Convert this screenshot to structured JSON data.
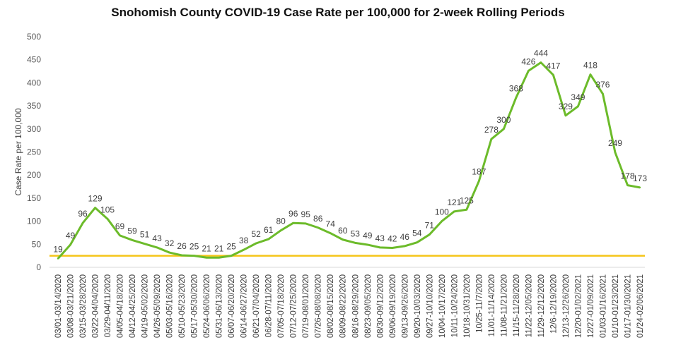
{
  "chart_data": {
    "type": "line",
    "title": "Snohomish County COVID-19 Case Rate per 100,000 for 2-week Rolling Periods",
    "xlabel": "",
    "ylabel": "Case Rate per 100,000",
    "ylim": [
      0,
      500
    ],
    "yticks": [
      0,
      50,
      100,
      150,
      200,
      250,
      300,
      350,
      400,
      450,
      500
    ],
    "grid": false,
    "legend": "none",
    "categories": [
      "03/01-03/14/2020",
      "03/08-03/21/2020",
      "03/15-03/28/2020",
      "03/22-04/04/2020",
      "03/29-04/11/2020",
      "04/05-04/18/2020",
      "04/12-04/25/2020",
      "04/19-05/02/2020",
      "04/26-05/09/2020",
      "05/03-05/16/2020",
      "05/10-05/23/2020",
      "05/17-05/30/2020",
      "05/24-06/06/2020",
      "05/31-06/13/2020",
      "06/07-06/20/2020",
      "06/14-06/27/2020",
      "06/21-07/04/2020",
      "06/28-07/11/2020",
      "07/05-07/18/2020",
      "07/12-07/25/2020",
      "07/19-08/01/2020",
      "07/26-08/08/2020",
      "08/02-08/15/2020",
      "08/09-08/22/2020",
      "08/16-08/29/2020",
      "08/23-09/05/2020",
      "08/30-09/12/2020",
      "09/06-09/19/2020",
      "09/13-09/26/2020",
      "09/20-10/03/2020",
      "09/27-10/10/2020",
      "10/04-10/17/2020",
      "10/11-10/24/2020",
      "10/18-10/31/2020",
      "10/25-11/7/2020",
      "11/01-11/14/2020",
      "11/08-11/21/2020",
      "11/15-11/28/2020",
      "11/22-12/05/2020",
      "11/29-12/12/2020",
      "12/6-12/19/2020",
      "12/13-12/26/2020",
      "12/20-01/02/2021",
      "12/27-01/09/2021",
      "01/03-01/16/2021",
      "01/10-01/23/2021",
      "01/17-01/30/2021",
      "01/24-02/06/2021"
    ],
    "series": [
      {
        "values": [
          19,
          49,
          96,
          129,
          105,
          69,
          59,
          51,
          43,
          32,
          26,
          25,
          21,
          21,
          25,
          38,
          52,
          61,
          80,
          96,
          95,
          86,
          74,
          60,
          53,
          49,
          43,
          42,
          46,
          54,
          71,
          100,
          121,
          125,
          187,
          278,
          300,
          368,
          426,
          444,
          417,
          329,
          349,
          418,
          376,
          249,
          178,
          173
        ],
        "color": "#6cbb2a"
      }
    ],
    "reference_line": {
      "value": 25,
      "color": "#f5c518"
    }
  }
}
